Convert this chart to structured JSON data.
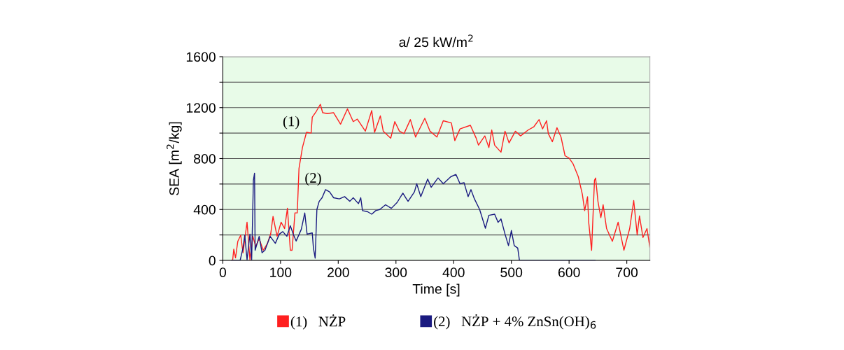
{
  "chart_data": {
    "type": "line",
    "title": "a/ 25 kW/m$^{2}$",
    "xlabel": "Time [s]",
    "ylabel": "SEA [m$^{2}$/kg]",
    "xlim": [
      0,
      740
    ],
    "xticks": [
      0,
      100,
      200,
      300,
      400,
      500,
      600,
      700
    ],
    "ylim": [
      0,
      1600
    ],
    "yticks": [
      0,
      {
        "value": 200,
        "label": null
      },
      400,
      {
        "value": 600,
        "label": null
      },
      800,
      {
        "value": 1000,
        "label": null
      },
      1200,
      {
        "value": 1400,
        "label": null
      },
      1600
    ],
    "grid": "y",
    "legend": "bottom",
    "marker": "none",
    "line_style": "solid",
    "annotations": [
      {
        "text": "(1)",
        "x": 140,
        "y": 1000
      },
      {
        "text": "(2)",
        "x": 178,
        "y": 556
      }
    ],
    "series": [
      {
        "name": "(1)   NŻP",
        "color": "#ff2020",
        "x": [
          17,
          19,
          22,
          26,
          31,
          35,
          42,
          47,
          52,
          57,
          63,
          70,
          77,
          83,
          87,
          94,
          101,
          107,
          112,
          117,
          120,
          125,
          129,
          132,
          138,
          145,
          153,
          155,
          162,
          169,
          173,
          181,
          192,
          204,
          216,
          226,
          233,
          247,
          258,
          263,
          273,
          278,
          291,
          298,
          306,
          314,
          325,
          334,
          350,
          359,
          371,
          382,
          396,
          402,
          411,
          429,
          439,
          443,
          454,
          461,
          466,
          471,
          482,
          489,
          496,
          507,
          516,
          529,
          539,
          548,
          554,
          561,
          564,
          571,
          579,
          586,
          593,
          600,
          607,
          616,
          623,
          627,
          632,
          634,
          639,
          644,
          646,
          650,
          655,
          659,
          665,
          675,
          685,
          695,
          705,
          712,
          718,
          722,
          728,
          735,
          740
        ],
        "values": [
          0,
          88,
          20,
          150,
          198,
          60,
          300,
          5,
          190,
          110,
          170,
          80,
          130,
          210,
          345,
          190,
          300,
          250,
          410,
          80,
          80,
          373,
          373,
          722,
          887,
          1006,
          1000,
          1125,
          1171,
          1226,
          1160,
          1153,
          1160,
          1070,
          1190,
          1090,
          1110,
          1015,
          1177,
          1006,
          1135,
          1015,
          960,
          1090,
          1015,
          996,
          1106,
          969,
          1116,
          1015,
          969,
          1097,
          1080,
          941,
          1033,
          1061,
          960,
          905,
          978,
          886,
          1024,
          905,
          850,
          1015,
          923,
          1015,
          978,
          1024,
          1050,
          1106,
          1033,
          1097,
          996,
          932,
          1042,
          969,
          822,
          803,
          758,
          657,
          519,
          391,
          500,
          299,
          79,
          629,
          647,
          464,
          336,
          437,
          250,
          150,
          300,
          80,
          250,
          470,
          200,
          350,
          180,
          250,
          100
        ]
      },
      {
        "name": "(2)   NŻP + 4% ZnSn(OH)$_{6}$",
        "color": "#1a1a80",
        "x": [
          15,
          30,
          35,
          38,
          42,
          47,
          50,
          53,
          55,
          56,
          63,
          68,
          73,
          82,
          91,
          98,
          104,
          111,
          117,
          122,
          127,
          136,
          142,
          146,
          155,
          157,
          160,
          163,
          167,
          172,
          178,
          185,
          192,
          202,
          211,
          220,
          226,
          235,
          239,
          242,
          251,
          258,
          265,
          272,
          282,
          292,
          302,
          312,
          317,
          321,
          332,
          336,
          343,
          355,
          361,
          373,
          382,
          395,
          404,
          411,
          418,
          425,
          430,
          436,
          445,
          455,
          461,
          471,
          477,
          482,
          489,
          495,
          500,
          505,
          511,
          514,
          645
        ],
        "values": [
          0,
          0,
          97,
          198,
          5,
          207,
          5,
          630,
          685,
          79,
          189,
          60,
          80,
          189,
          134,
          207,
          226,
          189,
          272,
          207,
          152,
          244,
          373,
          207,
          216,
          97,
          18,
          400,
          464,
          492,
          556,
          538,
          492,
          483,
          501,
          464,
          492,
          446,
          492,
          391,
          382,
          363,
          391,
          400,
          437,
          409,
          455,
          528,
          492,
          464,
          538,
          602,
          501,
          639,
          574,
          648,
          602,
          657,
          675,
          602,
          611,
          501,
          556,
          483,
          400,
          253,
          354,
          363,
          299,
          326,
          207,
          116,
          235,
          116,
          97,
          0,
          0
        ]
      }
    ]
  }
}
